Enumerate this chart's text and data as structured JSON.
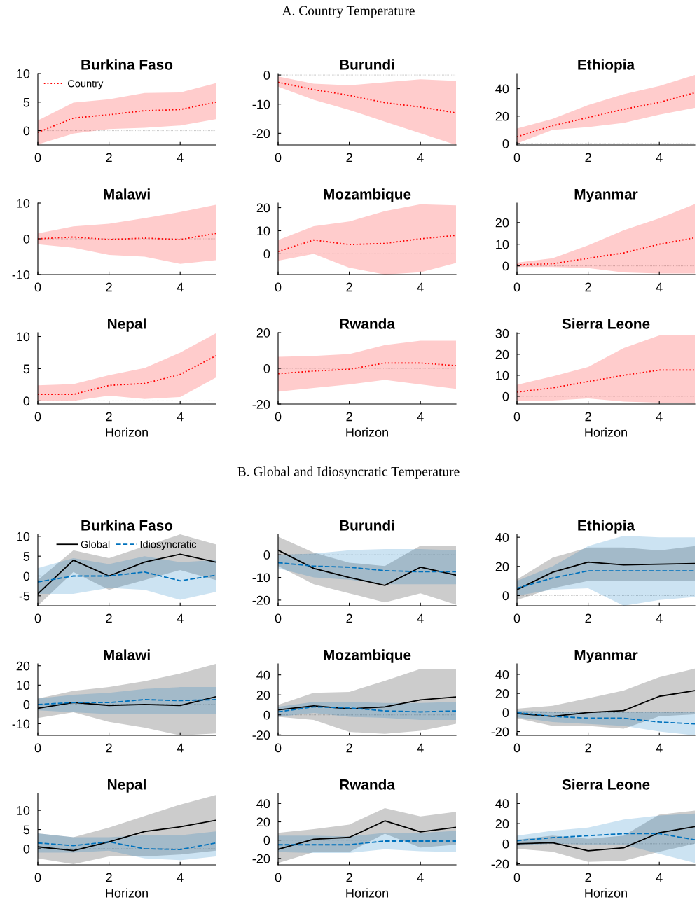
{
  "chart_data": [
    {
      "type": "line",
      "title": "Burkina Faso",
      "annotations": [
        "A. Country Temperature"
      ],
      "legend": "top left",
      "x": [
        0,
        1,
        2,
        3,
        4,
        5
      ],
      "xlim": [
        0,
        5
      ],
      "xticks": [
        0,
        2,
        4
      ],
      "ylim": [
        -2.5,
        10
      ],
      "yticks": [
        0,
        5,
        10
      ],
      "ref_lines": [
        {
          "axis": "y",
          "value": 0,
          "color": "#aaaaaa",
          "line_style": "dotted"
        }
      ],
      "series": [
        {
          "name": "Country",
          "color": "#ff0000",
          "line_style": "dotted",
          "values": [
            -0.3,
            2.2,
            2.8,
            3.5,
            3.7,
            5.0
          ],
          "lower": [
            -2.4,
            -0.5,
            0.3,
            0.5,
            0.9,
            2.0
          ],
          "upper": [
            1.8,
            4.9,
            5.5,
            6.6,
            6.7,
            8.3
          ]
        }
      ]
    },
    {
      "type": "line",
      "title": "Burundi",
      "x": [
        0,
        1,
        2,
        3,
        4,
        5
      ],
      "xlim": [
        0,
        5
      ],
      "xticks": [
        0,
        2,
        4
      ],
      "ylim": [
        -24,
        0.5
      ],
      "yticks": [
        -20,
        -10,
        0
      ],
      "ref_lines": [
        {
          "axis": "y",
          "value": 0,
          "color": "#aaaaaa",
          "line_style": "dotted"
        }
      ],
      "series": [
        {
          "color": "#ff0000",
          "line_style": "dotted",
          "values": [
            -2.5,
            -5,
            -7,
            -9.5,
            -11,
            -13
          ],
          "lower": [
            -4,
            -8.5,
            -12,
            -16,
            -20,
            -24
          ],
          "upper": [
            -0.5,
            -3,
            -3.5,
            -2.5,
            -1.5,
            -2
          ]
        }
      ]
    },
    {
      "type": "line",
      "title": "Ethiopia",
      "x": [
        0,
        1,
        2,
        3,
        4,
        5
      ],
      "xlim": [
        0,
        5
      ],
      "xticks": [
        0,
        2,
        4
      ],
      "ylim": [
        -1,
        51
      ],
      "yticks": [
        0,
        20,
        40
      ],
      "ref_lines": [
        {
          "axis": "y",
          "value": 0,
          "color": "#aaaaaa",
          "line_style": "dotted"
        }
      ],
      "series": [
        {
          "color": "#ff0000",
          "line_style": "dotted",
          "values": [
            5,
            13,
            19,
            25,
            30,
            37
          ],
          "lower": [
            0,
            10,
            12,
            15,
            21,
            26
          ],
          "upper": [
            11,
            18,
            28,
            36,
            42,
            50
          ]
        }
      ]
    },
    {
      "type": "line",
      "title": "Malawi",
      "x": [
        0,
        1,
        2,
        3,
        4,
        5
      ],
      "xlim": [
        0,
        5
      ],
      "xticks": [
        0,
        2,
        4
      ],
      "ylim": [
        -10,
        10
      ],
      "yticks": [
        -10,
        0,
        10
      ],
      "ref_lines": [
        {
          "axis": "y",
          "value": 0,
          "color": "#aaaaaa",
          "line_style": "dotted"
        }
      ],
      "series": [
        {
          "color": "#ff0000",
          "line_style": "dotted",
          "values": [
            0,
            0.5,
            -0.2,
            0.2,
            -0.2,
            1.5
          ],
          "lower": [
            -1.5,
            -2.5,
            -4.5,
            -5,
            -7,
            -6
          ],
          "upper": [
            1.5,
            3.5,
            4.2,
            5.8,
            7.5,
            9.5
          ]
        }
      ]
    },
    {
      "type": "line",
      "title": "Mozambique",
      "x": [
        0,
        1,
        2,
        3,
        4,
        5
      ],
      "xlim": [
        0,
        5
      ],
      "xticks": [
        0,
        2,
        4
      ],
      "ylim": [
        -9,
        22
      ],
      "yticks": [
        0,
        10,
        20
      ],
      "ref_lines": [
        {
          "axis": "y",
          "value": 0,
          "color": "#aaaaaa",
          "line_style": "dotted"
        }
      ],
      "series": [
        {
          "color": "#ff0000",
          "line_style": "dotted",
          "values": [
            1,
            6,
            4,
            4.5,
            6.5,
            8
          ],
          "lower": [
            -3,
            0,
            -6,
            -9,
            -8,
            -4
          ],
          "upper": [
            6,
            12,
            14,
            18.5,
            21.5,
            21
          ]
        }
      ]
    },
    {
      "type": "line",
      "title": "Myanmar",
      "x": [
        0,
        1,
        2,
        3,
        4,
        5
      ],
      "xlim": [
        0,
        5
      ],
      "xticks": [
        0,
        2,
        4
      ],
      "ylim": [
        -4,
        29
      ],
      "yticks": [
        0,
        10,
        20
      ],
      "ref_lines": [
        {
          "axis": "y",
          "value": 0,
          "color": "#aaaaaa",
          "line_style": "dotted"
        }
      ],
      "series": [
        {
          "color": "#ff0000",
          "line_style": "dotted",
          "values": [
            0.5,
            1,
            3.5,
            6,
            10,
            13
          ],
          "lower": [
            -0.5,
            -0.5,
            -1,
            -3,
            -3.5,
            -3.5
          ],
          "upper": [
            1.5,
            3.5,
            9.5,
            16.5,
            22,
            28.5
          ]
        }
      ]
    },
    {
      "type": "line",
      "title": "Nepal",
      "xlabel": "Horizon",
      "x": [
        0,
        1,
        2,
        3,
        4,
        5
      ],
      "xlim": [
        0,
        5
      ],
      "xticks": [
        0,
        2,
        4
      ],
      "ylim": [
        -0.5,
        10.6
      ],
      "yticks": [
        0,
        5,
        10
      ],
      "ref_lines": [
        {
          "axis": "y",
          "value": 0,
          "color": "#aaaaaa",
          "line_style": "dotted"
        }
      ],
      "series": [
        {
          "color": "#ff0000",
          "line_style": "dotted",
          "values": [
            1,
            1,
            2.4,
            2.7,
            4.1,
            7
          ],
          "lower": [
            0,
            0,
            0.8,
            0.3,
            0.6,
            3.6
          ],
          "upper": [
            2.4,
            2.6,
            4,
            5.1,
            7.5,
            10.5
          ]
        }
      ]
    },
    {
      "type": "line",
      "title": "Rwanda",
      "xlabel": "Horizon",
      "x": [
        0,
        1,
        2,
        3,
        4,
        5
      ],
      "xlim": [
        0,
        5
      ],
      "xticks": [
        0,
        2,
        4
      ],
      "ylim": [
        -20,
        20
      ],
      "yticks": [
        -20,
        0,
        20
      ],
      "ref_lines": [
        {
          "axis": "y",
          "value": 0,
          "color": "#aaaaaa",
          "line_style": "dotted"
        }
      ],
      "series": [
        {
          "color": "#ff0000",
          "line_style": "dotted",
          "values": [
            -3,
            -1.5,
            -0.5,
            3,
            3,
            1.5
          ],
          "lower": [
            -13,
            -11,
            -9,
            -6.5,
            -9,
            -11.5
          ],
          "upper": [
            6.5,
            7,
            8,
            13,
            15.5,
            15.5
          ]
        }
      ]
    },
    {
      "type": "line",
      "title": "Sierra Leone",
      "xlabel": "Horizon",
      "x": [
        0,
        1,
        2,
        3,
        4,
        5
      ],
      "xlim": [
        0,
        5
      ],
      "xticks": [
        0,
        2,
        4
      ],
      "ylim": [
        -3.7,
        30.3
      ],
      "yticks": [
        0,
        10,
        20,
        30
      ],
      "ref_lines": [
        {
          "axis": "y",
          "value": 0,
          "color": "#aaaaaa",
          "line_style": "dotted"
        }
      ],
      "series": [
        {
          "color": "#ff0000",
          "line_style": "dotted",
          "values": [
            2,
            4,
            7,
            10,
            12.5,
            12.5
          ],
          "lower": [
            -2,
            -2,
            -1,
            -2.5,
            -3,
            -3.5
          ],
          "upper": [
            5.5,
            9.5,
            14,
            23,
            29,
            29
          ]
        }
      ]
    },
    {
      "type": "line",
      "title": "Burkina Faso",
      "annotations": [
        "B. Global and Idiosyncratic Temperature"
      ],
      "legend": "top",
      "x": [
        0,
        1,
        2,
        3,
        4,
        5
      ],
      "xlim": [
        0,
        5
      ],
      "xticks": [
        0,
        2,
        4
      ],
      "ylim": [
        -7.5,
        10.5
      ],
      "yticks": [
        -5,
        0,
        5,
        10
      ],
      "ref_lines": [
        {
          "axis": "y",
          "value": 0,
          "color": "#aaaaaa",
          "line_style": "dotted"
        }
      ],
      "series": [
        {
          "name": "Global",
          "color": "#000000",
          "line_style": "solid",
          "values": [
            -4.5,
            4,
            0,
            3.5,
            5.5,
            3.5
          ],
          "lower": [
            -7.5,
            1,
            -3.5,
            -1,
            1.5,
            -1
          ],
          "upper": [
            -1,
            6.5,
            4.5,
            7.5,
            10.5,
            8
          ]
        },
        {
          "name": "Idiosyncratic",
          "color": "#0072bd",
          "line_style": "dashed",
          "values": [
            -1.5,
            0,
            0,
            1,
            -1.2,
            0.2
          ],
          "lower": [
            -4.5,
            -4.5,
            -3,
            -3.5,
            -6,
            -4
          ],
          "upper": [
            2,
            4.5,
            3,
            5,
            3.5,
            4
          ]
        }
      ]
    },
    {
      "type": "line",
      "title": "Burundi",
      "x": [
        0,
        1,
        2,
        3,
        4,
        5
      ],
      "xlim": [
        0,
        5
      ],
      "xticks": [
        0,
        2,
        4
      ],
      "ylim": [
        -22.5,
        9
      ],
      "yticks": [
        -20,
        -10,
        0
      ],
      "ref_lines": [
        {
          "axis": "y",
          "value": 0,
          "color": "#aaaaaa",
          "line_style": "dotted"
        }
      ],
      "series": [
        {
          "color": "#000000",
          "line_style": "solid",
          "values": [
            2,
            -6,
            -10,
            -13.5,
            -5.5,
            -9
          ],
          "lower": [
            -5,
            -13,
            -17,
            -21,
            -17,
            -22
          ],
          "upper": [
            8,
            1,
            -3.5,
            -5,
            4,
            4
          ]
        },
        {
          "color": "#0072bd",
          "line_style": "dashed",
          "values": [
            -3.5,
            -5,
            -5.5,
            -7,
            -7.5,
            -7.5
          ],
          "lower": [
            -6,
            -10,
            -11,
            -13,
            -13,
            -13
          ],
          "upper": [
            0,
            0.5,
            2,
            2.5,
            2.5,
            2
          ]
        }
      ]
    },
    {
      "type": "line",
      "title": "Ethiopia",
      "x": [
        0,
        1,
        2,
        3,
        4,
        5
      ],
      "xlim": [
        0,
        5
      ],
      "xticks": [
        0,
        2,
        4
      ],
      "ylim": [
        -7,
        42
      ],
      "yticks": [
        0,
        20,
        40
      ],
      "ref_lines": [
        {
          "axis": "y",
          "value": 0,
          "color": "#aaaaaa",
          "line_style": "dotted"
        }
      ],
      "series": [
        {
          "color": "#000000",
          "line_style": "solid",
          "values": [
            4,
            16,
            23,
            21,
            21.5,
            22
          ],
          "lower": [
            -3,
            5,
            10,
            10,
            10,
            10
          ],
          "upper": [
            11,
            26,
            33,
            33,
            31,
            34
          ]
        },
        {
          "color": "#0072bd",
          "line_style": "dashed",
          "values": [
            5,
            12,
            17,
            17,
            17,
            17
          ],
          "lower": [
            0,
            4,
            5,
            -7,
            -3,
            -1
          ],
          "upper": [
            10,
            20,
            34,
            41,
            40,
            40
          ]
        }
      ]
    },
    {
      "type": "line",
      "title": "Malawi",
      "x": [
        0,
        1,
        2,
        3,
        4,
        5
      ],
      "xlim": [
        0,
        5
      ],
      "xticks": [
        0,
        2,
        4
      ],
      "ylim": [
        -16,
        21
      ],
      "yticks": [
        -10,
        0,
        10,
        20
      ],
      "ref_lines": [
        {
          "axis": "y",
          "value": 0,
          "color": "#aaaaaa",
          "line_style": "dotted"
        }
      ],
      "series": [
        {
          "color": "#000000",
          "line_style": "solid",
          "values": [
            -2,
            1,
            -0.5,
            0,
            -0.5,
            4
          ],
          "lower": [
            -7,
            -4,
            -9,
            -12,
            -16,
            -15
          ],
          "upper": [
            3,
            7,
            9,
            12,
            16,
            21
          ]
        },
        {
          "color": "#0072bd",
          "line_style": "dashed",
          "values": [
            0,
            1,
            1,
            2.5,
            2,
            2.5
          ],
          "lower": [
            -3,
            -4,
            -5,
            -5,
            -5,
            -5
          ],
          "upper": [
            3,
            5,
            6,
            8,
            9,
            9
          ]
        }
      ]
    },
    {
      "type": "line",
      "title": "Mozambique",
      "x": [
        0,
        1,
        2,
        3,
        4,
        5
      ],
      "xlim": [
        0,
        5
      ],
      "xticks": [
        0,
        2,
        4
      ],
      "ylim": [
        -20.5,
        51
      ],
      "yticks": [
        -20,
        0,
        20,
        40
      ],
      "ref_lines": [
        {
          "axis": "y",
          "value": 0,
          "color": "#aaaaaa",
          "line_style": "dotted"
        }
      ],
      "series": [
        {
          "color": "#000000",
          "line_style": "solid",
          "values": [
            5,
            9,
            6,
            8,
            15,
            18
          ],
          "lower": [
            -2,
            -5,
            -17,
            -19,
            -16,
            -9
          ],
          "upper": [
            10,
            22,
            23,
            34,
            46,
            46
          ]
        },
        {
          "color": "#0072bd",
          "line_style": "dashed",
          "values": [
            3,
            8,
            7,
            4,
            3,
            4
          ],
          "lower": [
            -2,
            2,
            -2,
            -3,
            -5,
            -5
          ],
          "upper": [
            8,
            13,
            13,
            12,
            12,
            13
          ]
        }
      ]
    },
    {
      "type": "line",
      "title": "Myanmar",
      "x": [
        0,
        1,
        2,
        3,
        4,
        5
      ],
      "xlim": [
        0,
        5
      ],
      "xticks": [
        0,
        2,
        4
      ],
      "ylim": [
        -24,
        51
      ],
      "yticks": [
        -20,
        0,
        20,
        40
      ],
      "ref_lines": [
        {
          "axis": "y",
          "value": 0,
          "color": "#aaaaaa",
          "line_style": "dotted"
        }
      ],
      "series": [
        {
          "color": "#000000",
          "line_style": "solid",
          "values": [
            -1,
            -4,
            0,
            2,
            17,
            23
          ],
          "lower": [
            -6,
            -14,
            -14,
            -17,
            -4,
            -2
          ],
          "upper": [
            4,
            7,
            15,
            23,
            37,
            46
          ]
        },
        {
          "color": "#0072bd",
          "line_style": "dashed",
          "values": [
            0,
            -4,
            -6,
            -6,
            -10,
            -12
          ],
          "lower": [
            -5,
            -10,
            -12,
            -14,
            -20,
            -24
          ],
          "upper": [
            2,
            1,
            0,
            1,
            1,
            1
          ]
        }
      ]
    },
    {
      "type": "line",
      "title": "Nepal",
      "xlabel": "Horizon",
      "x": [
        0,
        1,
        2,
        3,
        4,
        5
      ],
      "xlim": [
        0,
        5
      ],
      "xticks": [
        0,
        2,
        4
      ],
      "ylim": [
        -4.2,
        14.4
      ],
      "yticks": [
        0,
        5,
        10
      ],
      "ref_lines": [
        {
          "axis": "y",
          "value": 0,
          "color": "#aaaaaa",
          "line_style": "dotted"
        }
      ],
      "series": [
        {
          "color": "#000000",
          "line_style": "solid",
          "values": [
            0.5,
            -0.5,
            1.8,
            4.5,
            5.7,
            7.4
          ],
          "lower": [
            -2.5,
            -4,
            -2,
            -2,
            -1.5,
            -0.5
          ],
          "upper": [
            4,
            3,
            5.5,
            8.5,
            11.5,
            14
          ]
        },
        {
          "color": "#0072bd",
          "line_style": "dashed",
          "values": [
            1.5,
            0.8,
            1.8,
            0,
            -0.2,
            1.5
          ],
          "lower": [
            -1,
            -1,
            -0.5,
            -2.5,
            -3,
            -2
          ],
          "upper": [
            4,
            3,
            3,
            3.5,
            3.5,
            4.5
          ]
        }
      ]
    },
    {
      "type": "line",
      "title": "Rwanda",
      "xlabel": "Horizon",
      "x": [
        0,
        1,
        2,
        3,
        4,
        5
      ],
      "xlim": [
        0,
        5
      ],
      "xticks": [
        0,
        2,
        4
      ],
      "ylim": [
        -27,
        51
      ],
      "yticks": [
        -20,
        0,
        20,
        40
      ],
      "ref_lines": [
        {
          "axis": "y",
          "value": 0,
          "color": "#aaaaaa",
          "line_style": "dotted"
        }
      ],
      "series": [
        {
          "color": "#000000",
          "line_style": "solid",
          "values": [
            -10,
            1,
            3,
            21,
            9,
            14
          ],
          "lower": [
            -25,
            -13,
            -13,
            7,
            -8,
            -5
          ],
          "upper": [
            8,
            12,
            17,
            35,
            26,
            31
          ]
        },
        {
          "color": "#0072bd",
          "line_style": "dashed",
          "values": [
            -5,
            -5,
            -5,
            -1,
            -1,
            -1
          ],
          "lower": [
            -13,
            -14,
            -14,
            -10,
            -12,
            -13
          ],
          "upper": [
            5,
            5,
            4,
            8,
            8,
            10
          ]
        }
      ]
    },
    {
      "type": "line",
      "title": "Sierra Leone",
      "xlabel": "Horizon",
      "x": [
        0,
        1,
        2,
        3,
        4,
        5
      ],
      "xlim": [
        0,
        5
      ],
      "xticks": [
        0,
        2,
        4
      ],
      "ylim": [
        -21,
        50
      ],
      "yticks": [
        -20,
        0,
        20,
        40
      ],
      "ref_lines": [
        {
          "axis": "y",
          "value": 0,
          "color": "#aaaaaa",
          "line_style": "dotted"
        }
      ],
      "series": [
        {
          "color": "#000000",
          "line_style": "solid",
          "values": [
            0,
            1,
            -7,
            -4,
            11,
            17
          ],
          "lower": [
            -5,
            -8,
            -18,
            -17,
            -8,
            0
          ],
          "upper": [
            4,
            8,
            5,
            8,
            29,
            33
          ]
        },
        {
          "color": "#0072bd",
          "line_style": "dashed",
          "values": [
            3,
            6,
            8,
            10,
            10,
            4
          ],
          "lower": [
            -2,
            0,
            -1,
            -1,
            -10,
            -19
          ],
          "upper": [
            8,
            13,
            16,
            24,
            28,
            30
          ]
        }
      ]
    }
  ]
}
